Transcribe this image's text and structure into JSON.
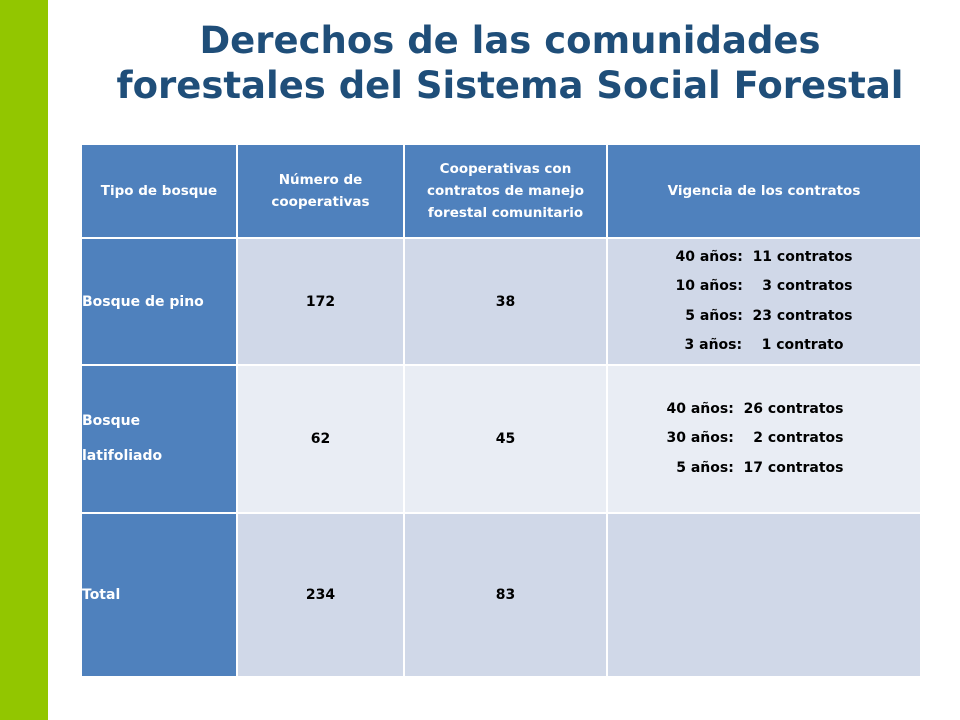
{
  "title": {
    "line1": "Derechos de las comunidades",
    "line2": "forestales del Sistema Social Forestal"
  },
  "colors": {
    "accent_bar": "#92c600",
    "title": "#1f4e79",
    "header_bg": "#4f81bd",
    "row_dark": "#d0d8e8",
    "row_light": "#e9edf4"
  },
  "table": {
    "headers": [
      "Tipo de bosque",
      "Número de cooperativas",
      "Cooperativas con contratos de manejo forestal comunitario",
      "Vigencia de los contratos"
    ],
    "rows": [
      {
        "tipo": "Bosque de pino",
        "numero": "172",
        "cooperativas_contratos": "38",
        "vigencia": [
          "40 años:  11 contratos",
          "10 años:    3 contratos",
          "  5 años:  23 contratos",
          "3 años:    1 contrato"
        ]
      },
      {
        "tipo_line1": "Bosque",
        "tipo_line2": "latifoliado",
        "numero": "62",
        "cooperativas_contratos": "45",
        "vigencia": [
          "40 años:  26 contratos",
          "30 años:    2 contratos",
          "  5 años:  17 contratos"
        ]
      },
      {
        "tipo": "Total",
        "numero": "234",
        "cooperativas_contratos": "83",
        "vigencia": []
      }
    ]
  }
}
